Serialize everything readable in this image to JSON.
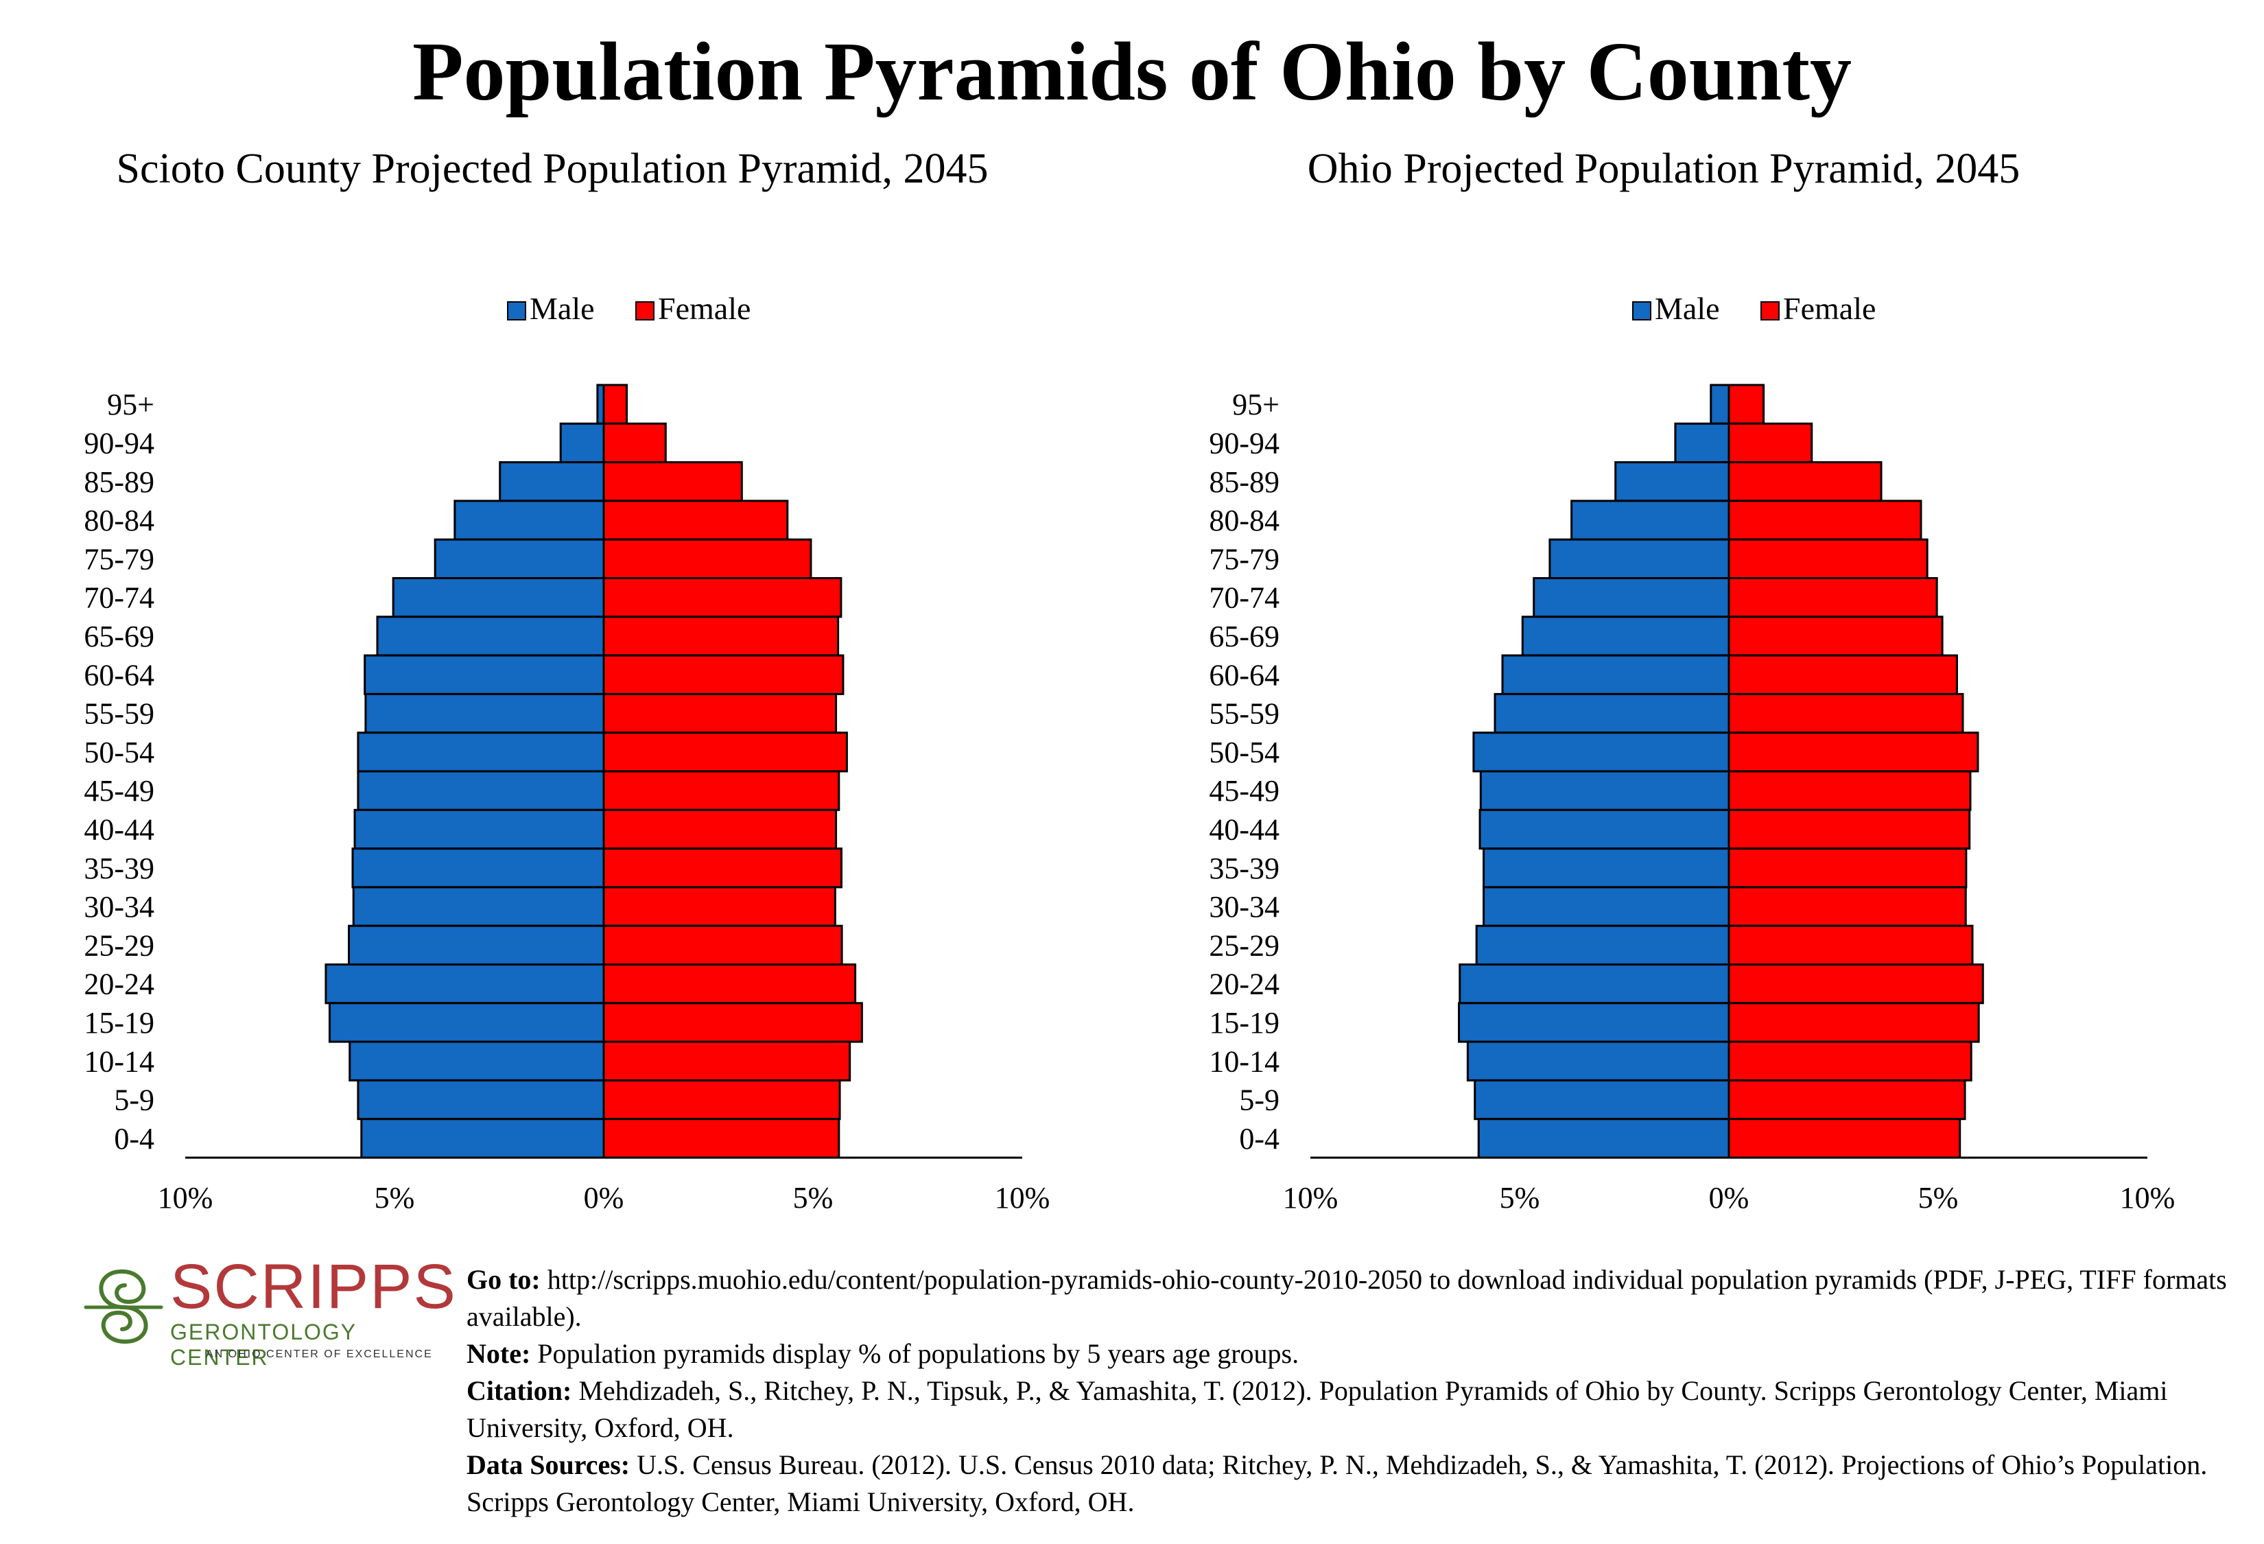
{
  "title": "Population Pyramids of Ohio by County",
  "colors": {
    "male": "#1469c0",
    "female": "#ff0000",
    "outline": "#000000"
  },
  "chart_data": [
    {
      "type": "bar",
      "title": "Scioto County Projected Population Pyramid, 2045",
      "legend": [
        "Male",
        "Female"
      ],
      "legend_position": "top-center",
      "categories": [
        "95+",
        "90-94",
        "85-89",
        "80-84",
        "75-79",
        "70-74",
        "65-69",
        "60-64",
        "55-59",
        "50-54",
        "45-49",
        "40-44",
        "35-39",
        "30-34",
        "25-29",
        "20-24",
        "15-19",
        "10-14",
        "5-9",
        "0-4"
      ],
      "series": [
        {
          "name": "Male",
          "values": [
            0.15,
            1.03,
            2.48,
            3.56,
            4.03,
            5.03,
            5.41,
            5.71,
            5.69,
            5.87,
            5.87,
            5.95,
            6.0,
            5.98,
            6.09,
            6.64,
            6.55,
            6.07,
            5.87,
            5.79
          ]
        },
        {
          "name": "Female",
          "values": [
            0.55,
            1.48,
            3.3,
            4.39,
            4.95,
            5.67,
            5.6,
            5.72,
            5.55,
            5.81,
            5.62,
            5.55,
            5.68,
            5.53,
            5.69,
            6.01,
            6.17,
            5.88,
            5.64,
            5.62
          ]
        }
      ],
      "xlabel": "",
      "ylabel": "",
      "tick_labels": [
        "10%",
        "5%",
        "0%",
        "5%",
        "10%"
      ],
      "xlim": [
        -10,
        10
      ]
    },
    {
      "type": "bar",
      "title": "Ohio Projected Population Pyramid, 2045",
      "legend": [
        "Male",
        "Female"
      ],
      "legend_position": "top-center",
      "categories": [
        "95+",
        "90-94",
        "85-89",
        "80-84",
        "75-79",
        "70-74",
        "65-69",
        "60-64",
        "55-59",
        "50-54",
        "45-49",
        "40-44",
        "35-39",
        "30-34",
        "25-29",
        "20-24",
        "15-19",
        "10-14",
        "5-9",
        "0-4"
      ],
      "series": [
        {
          "name": "Male",
          "values": [
            0.43,
            1.28,
            2.71,
            3.76,
            4.28,
            4.66,
            4.93,
            5.41,
            5.59,
            6.1,
            5.93,
            5.95,
            5.86,
            5.86,
            6.03,
            6.43,
            6.45,
            6.24,
            6.07,
            5.98
          ]
        },
        {
          "name": "Female",
          "values": [
            0.83,
            1.98,
            3.64,
            4.59,
            4.74,
            4.97,
            5.1,
            5.45,
            5.59,
            5.95,
            5.77,
            5.75,
            5.67,
            5.66,
            5.82,
            6.07,
            5.97,
            5.79,
            5.64,
            5.52
          ]
        }
      ],
      "xlabel": "",
      "ylabel": "",
      "tick_labels": [
        "10%",
        "5%",
        "0%",
        "5%",
        "10%"
      ],
      "xlim": [
        -10,
        10
      ]
    }
  ],
  "logo": {
    "name": "SCRIPPS",
    "subtitle": "GERONTOLOGY CENTER",
    "tagline": "AN OHIO CENTER OF EXCELLENCE"
  },
  "notes": [
    {
      "label": "Go to:",
      "text": " http://scripps.muohio.edu/content/population-pyramids-ohio-county-2010-2050 to download individual population pyramids (PDF, J-PEG, TIFF formats available)."
    },
    {
      "label": "Note:",
      "text": " Population pyramids display % of populations by 5 years age groups."
    },
    {
      "label": "Citation:",
      "text": " Mehdizadeh, S., Ritchey, P. N., Tipsuk, P., & Yamashita, T. (2012). Population Pyramids of Ohio by County. Scripps Gerontology Center, Miami University, Oxford, OH."
    },
    {
      "label": "Data Sources:",
      "text": " U.S. Census Bureau. (2012). U.S. Census 2010 data; Ritchey, P. N., Mehdizadeh, S., & Yamashita, T. (2012). Projections of Ohio’s Population. Scripps Gerontology Center, Miami University, Oxford, OH."
    }
  ]
}
